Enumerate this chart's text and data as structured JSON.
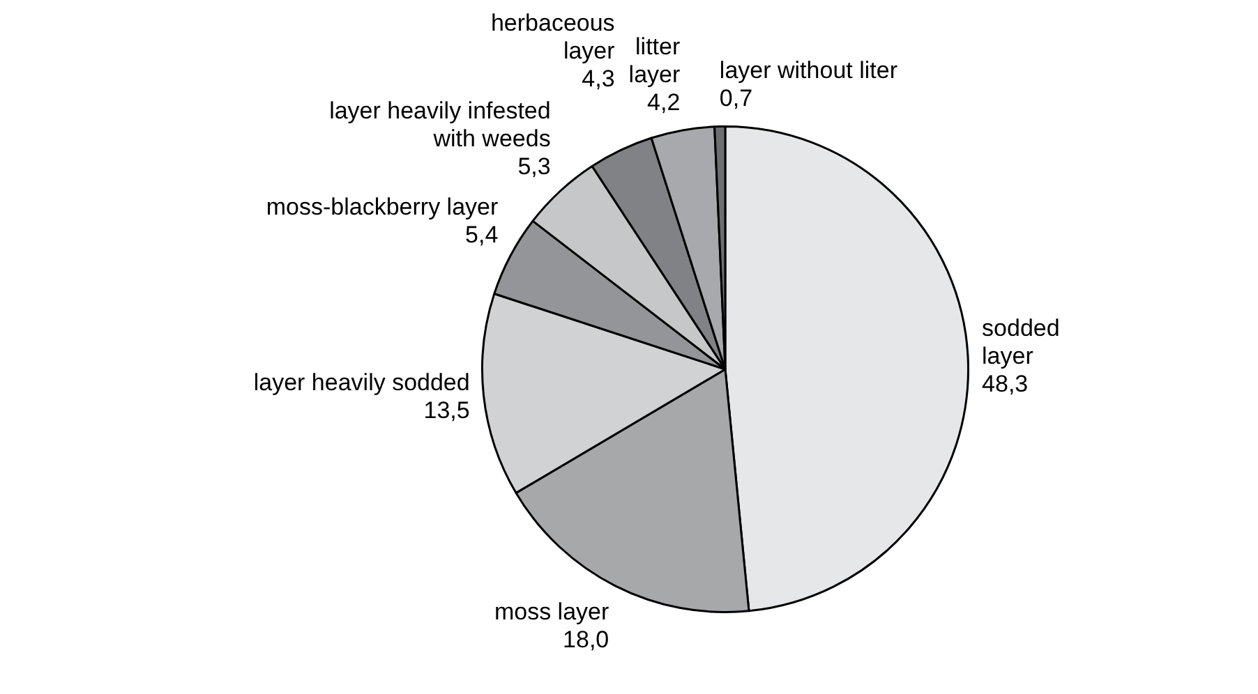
{
  "chart_data": {
    "type": "pie",
    "categories": [
      "sodded layer",
      "moss layer",
      "layer heavily sodded",
      "moss-blackberry layer",
      "layer heavily infested with weeds",
      "herbaceous layer",
      "litter layer",
      "layer without liter"
    ],
    "values": [
      48.3,
      18.0,
      13.5,
      5.4,
      5.3,
      4.3,
      4.2,
      0.7
    ],
    "value_labels": [
      "48,3",
      "18,0",
      "13,5",
      "5,4",
      "5,3",
      "4,3",
      "4,2",
      "0,7"
    ],
    "colors": [
      "#e6e7e8",
      "#a7a8aa",
      "#d1d2d4",
      "#939598",
      "#c6c7c9",
      "#808285",
      "#a7a9ac",
      "#6d6e71"
    ]
  }
}
